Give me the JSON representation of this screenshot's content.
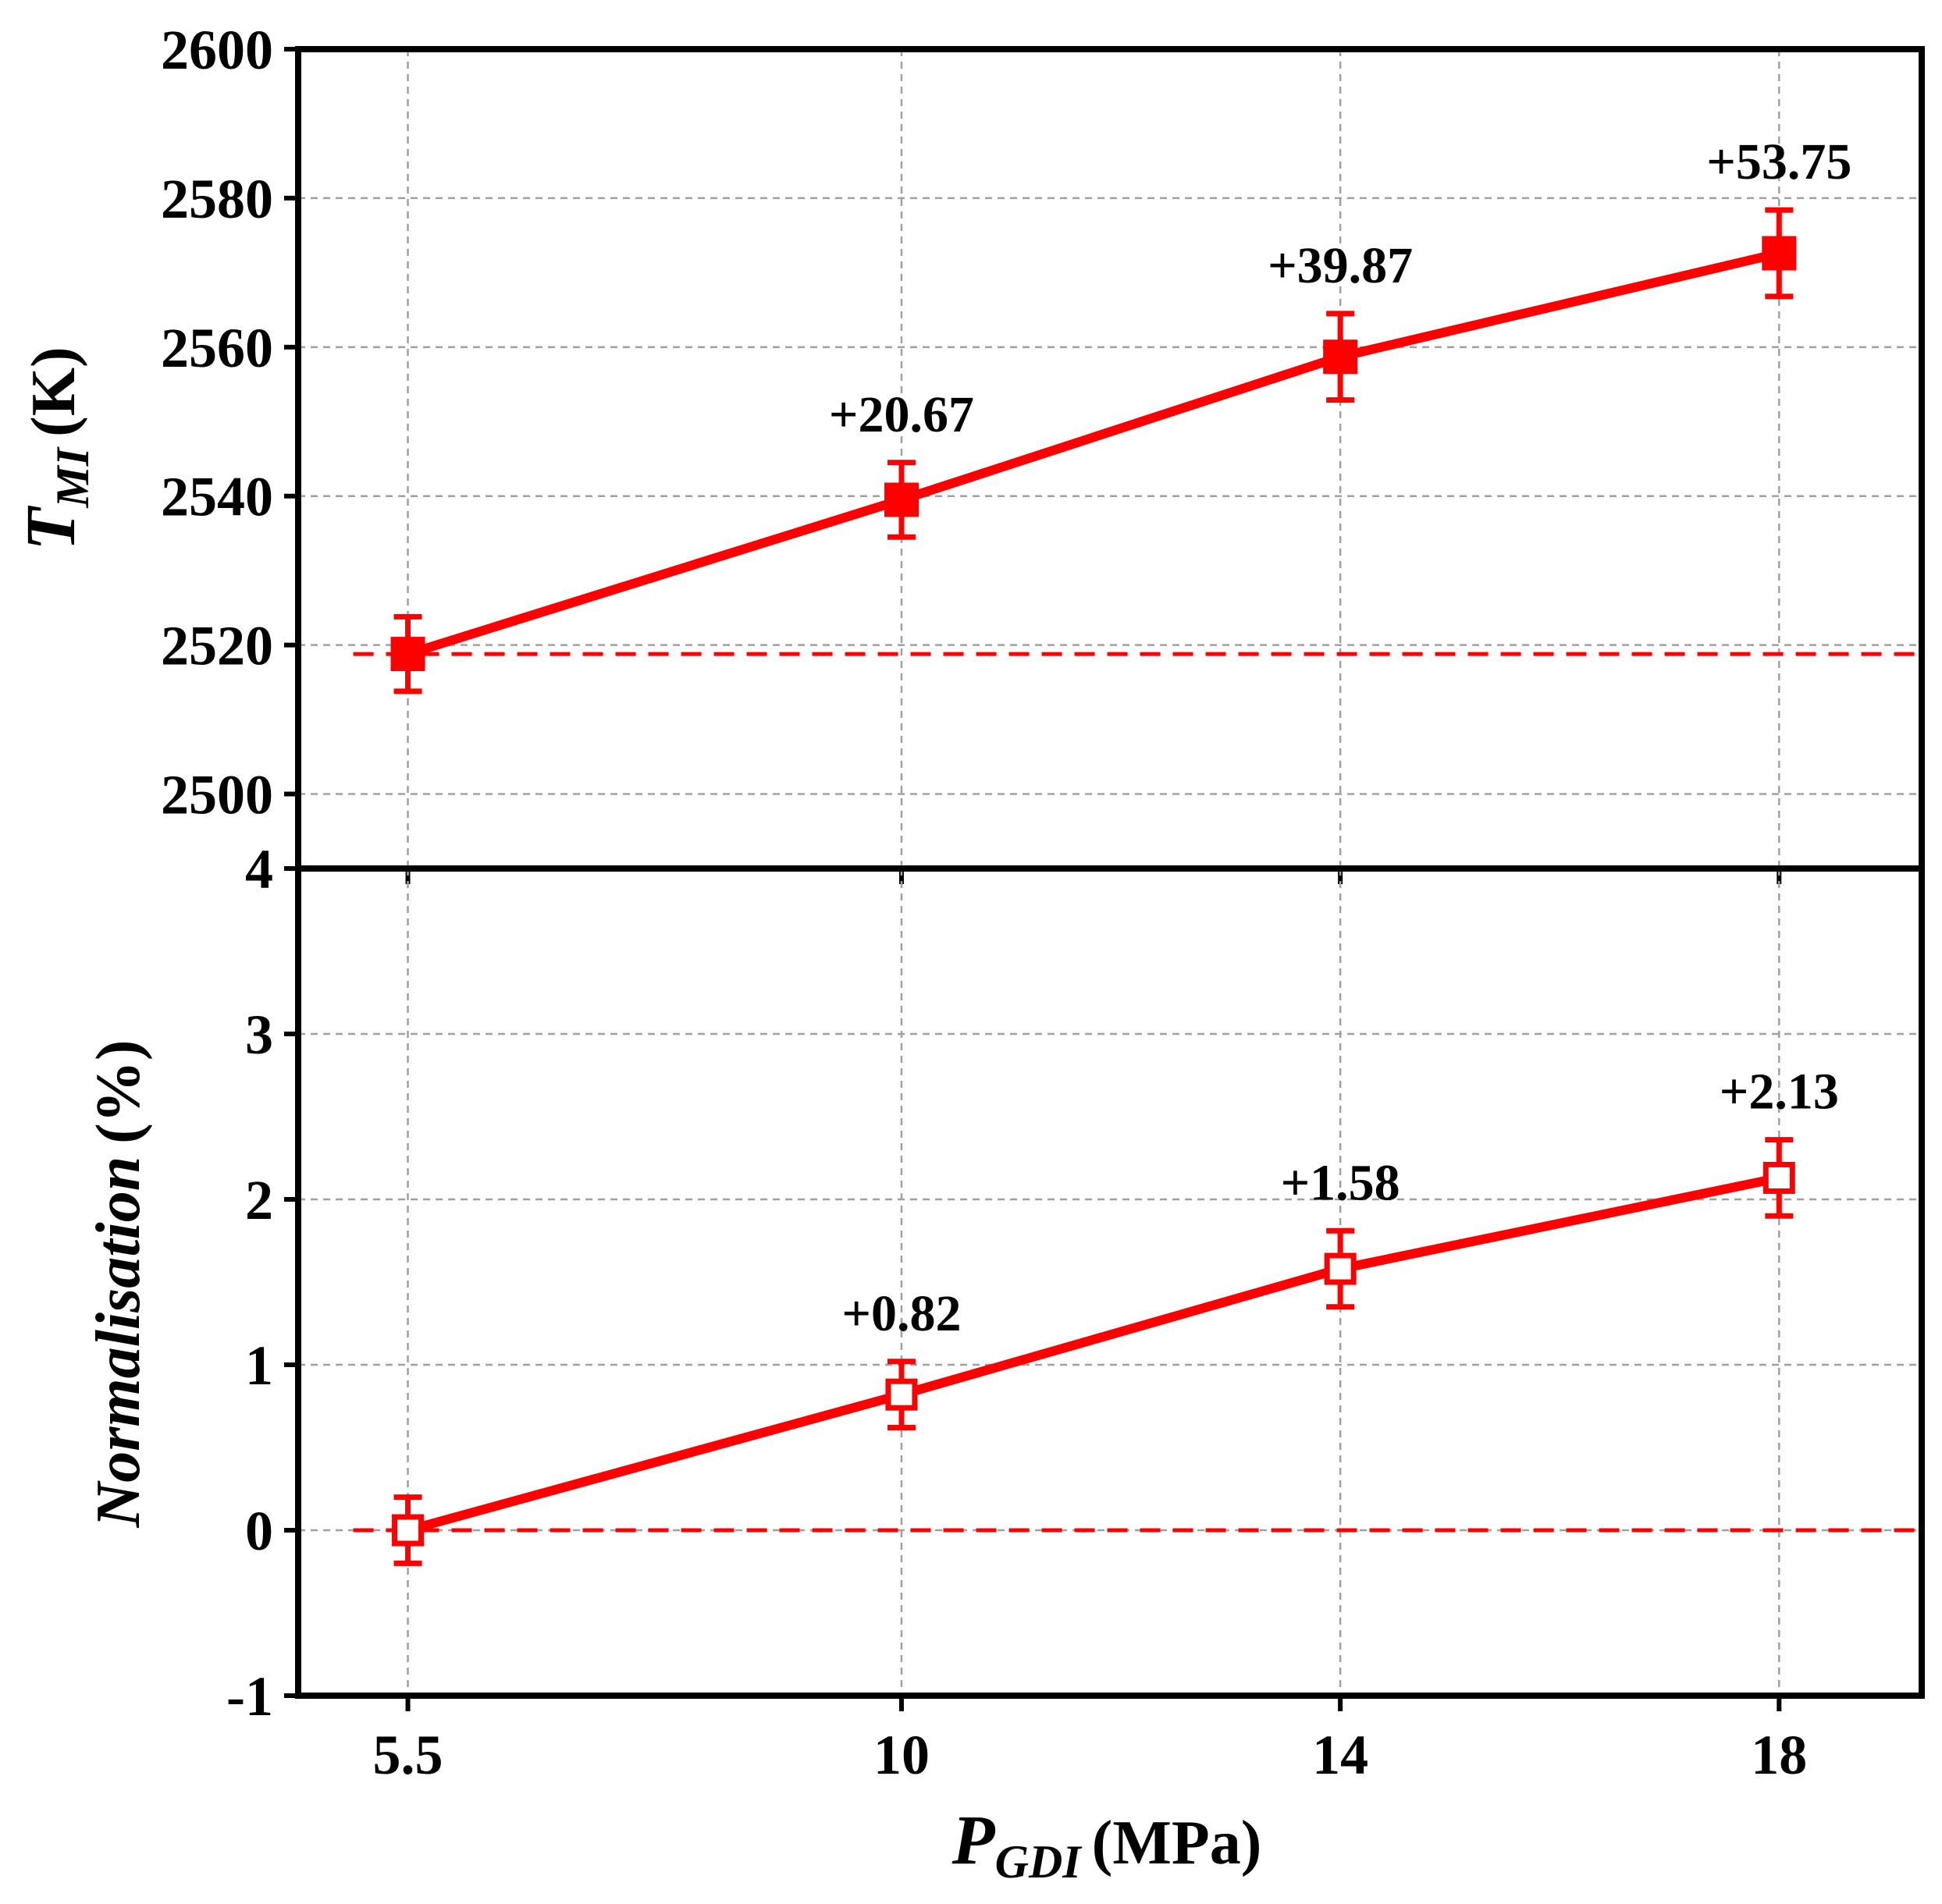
{
  "chart_data": [
    {
      "type": "line",
      "panel": "top",
      "title": "",
      "xlabel": "P_GDI (MPa)",
      "ylabel": "T_MI (K)",
      "ylabel_parts": {
        "var": "T",
        "sub": "MI",
        "unit": "(K)"
      },
      "x": [
        5.5,
        10,
        14,
        18
      ],
      "x_tick_labels": [
        "5.5",
        "10",
        "14",
        "18"
      ],
      "ylim": [
        2490,
        2600
      ],
      "yticks": [
        2500,
        2520,
        2540,
        2560,
        2580,
        2600
      ],
      "series": [
        {
          "name": "T_MI",
          "values": [
            2518.8,
            2539.5,
            2558.7,
            2572.6
          ],
          "error": [
            5,
            5,
            5.8,
            5.8
          ],
          "marker": "filled-square",
          "color": "#ff0000"
        }
      ],
      "reference_line": 2518.8,
      "annotations": [
        {
          "x": 10,
          "text": "+20.67"
        },
        {
          "x": 14,
          "text": "+39.87"
        },
        {
          "x": 18,
          "text": "+53.75"
        }
      ],
      "grid": true
    },
    {
      "type": "line",
      "panel": "bottom",
      "title": "",
      "xlabel": "P_GDI (MPa)",
      "xlabel_parts": {
        "var": "P",
        "sub": "GDI",
        "unit": "(MPa)"
      },
      "ylabel": "Normalisation (%)",
      "ylabel_parts": {
        "var": "Normalisation",
        "unit": "(%)"
      },
      "x": [
        5.5,
        10,
        14,
        18
      ],
      "x_tick_labels": [
        "5.5",
        "10",
        "14",
        "18"
      ],
      "ylim": [
        -1,
        4
      ],
      "yticks": [
        -1,
        0,
        1,
        2,
        3,
        4
      ],
      "series": [
        {
          "name": "Normalisation",
          "values": [
            0,
            0.82,
            1.58,
            2.13
          ],
          "error": [
            0.2,
            0.2,
            0.23,
            0.23
          ],
          "marker": "open-square",
          "color": "#ff0000"
        }
      ],
      "reference_line": 0,
      "annotations": [
        {
          "x": 10,
          "text": "+0.82"
        },
        {
          "x": 14,
          "text": "+1.58"
        },
        {
          "x": 18,
          "text": "+2.13"
        }
      ],
      "grid": true
    }
  ]
}
